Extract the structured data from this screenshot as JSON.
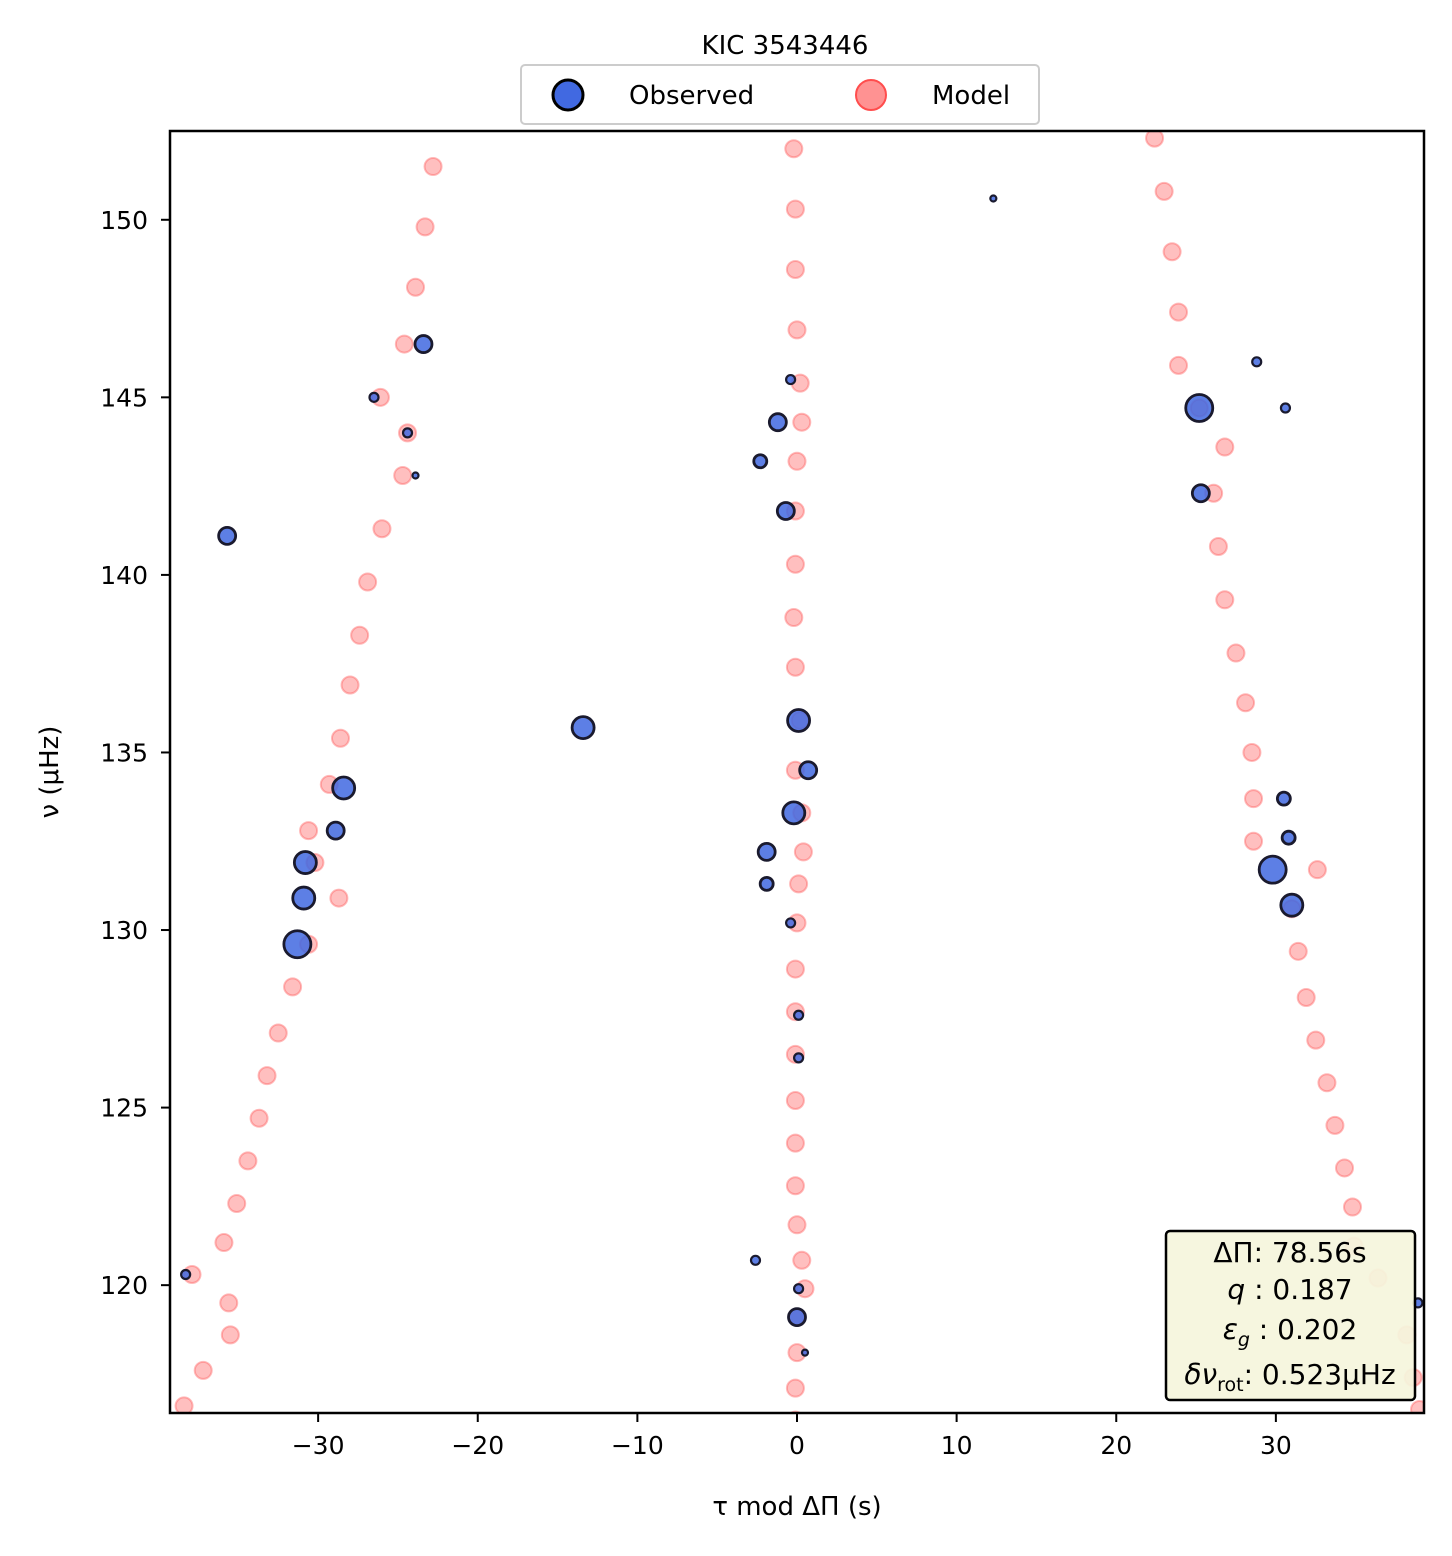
{
  "chart_data": {
    "type": "scatter",
    "title": "KIC 3543446",
    "xlabel": "τ mod ΔΠ (s)",
    "ylabel": "ν (μHz)",
    "xlim": [
      -39.28,
      39.28
    ],
    "ylim": [
      116.4,
      152.5
    ],
    "xticks": [
      -30,
      -20,
      -10,
      0,
      10,
      20,
      30
    ],
    "xtick_labels": [
      "−30",
      "−20",
      "−10",
      "0",
      "10",
      "20",
      "30"
    ],
    "yticks": [
      120,
      125,
      130,
      135,
      140,
      145,
      150
    ],
    "ytick_labels": [
      "120",
      "125",
      "130",
      "135",
      "140",
      "145",
      "150"
    ],
    "grid": false,
    "legend": {
      "placement": "top-center, above plot",
      "entries": [
        "Observed",
        "Model"
      ]
    },
    "series": [
      {
        "name": "Observed",
        "color": "#4169e1",
        "edge_color": "#1a1a2e",
        "marker_size_encodes": "relative amplitude",
        "points": [
          [
            -23.4,
            146.5,
            "m"
          ],
          [
            -26.5,
            145.0,
            "xs"
          ],
          [
            -24.4,
            144.0,
            "xs"
          ],
          [
            -23.9,
            142.8,
            "xxs"
          ],
          [
            -35.7,
            141.1,
            "m"
          ],
          [
            -13.4,
            135.7,
            "l"
          ],
          [
            -28.4,
            134.0,
            "l"
          ],
          [
            -28.9,
            132.8,
            "m"
          ],
          [
            -30.8,
            131.9,
            "l"
          ],
          [
            -30.9,
            130.9,
            "l"
          ],
          [
            -31.3,
            129.6,
            "xl"
          ],
          [
            -38.3,
            120.3,
            "xs"
          ],
          [
            12.3,
            150.6,
            "xxs"
          ],
          [
            -0.4,
            145.5,
            "xs"
          ],
          [
            -1.2,
            144.3,
            "m"
          ],
          [
            -2.3,
            143.2,
            "s"
          ],
          [
            -0.7,
            141.8,
            "m"
          ],
          [
            0.1,
            135.9,
            "l"
          ],
          [
            0.7,
            134.5,
            "m"
          ],
          [
            -0.2,
            133.3,
            "l"
          ],
          [
            -1.9,
            132.2,
            "m"
          ],
          [
            -1.9,
            131.3,
            "s"
          ],
          [
            -0.4,
            130.2,
            "xs"
          ],
          [
            0.1,
            127.6,
            "xs"
          ],
          [
            0.1,
            126.4,
            "xs"
          ],
          [
            -2.6,
            120.7,
            "xs"
          ],
          [
            0.1,
            119.9,
            "xs"
          ],
          [
            0.0,
            119.1,
            "m"
          ],
          [
            0.5,
            118.1,
            "xxs"
          ],
          [
            28.8,
            146.0,
            "xs"
          ],
          [
            25.2,
            144.7,
            "xl"
          ],
          [
            30.6,
            144.7,
            "xs"
          ],
          [
            25.3,
            142.3,
            "m"
          ],
          [
            30.5,
            133.7,
            "s"
          ],
          [
            30.8,
            132.6,
            "s"
          ],
          [
            29.8,
            131.7,
            "xl"
          ],
          [
            31.0,
            130.7,
            "l"
          ],
          [
            38.9,
            119.5,
            "xs"
          ]
        ]
      },
      {
        "name": "Model",
        "color": "#ff7f7f",
        "points": [
          [
            -22.8,
            151.5
          ],
          [
            -23.3,
            149.8
          ],
          [
            -23.9,
            148.1
          ],
          [
            -24.6,
            146.5
          ],
          [
            -26.1,
            145.0
          ],
          [
            -24.4,
            144.0
          ],
          [
            -24.7,
            142.8
          ],
          [
            -26.0,
            141.3
          ],
          [
            -26.9,
            139.8
          ],
          [
            -27.4,
            138.3
          ],
          [
            -28.0,
            136.9
          ],
          [
            -28.6,
            135.4
          ],
          [
            -29.3,
            134.1
          ],
          [
            -30.6,
            132.8
          ],
          [
            -30.2,
            131.9
          ],
          [
            -28.7,
            130.9
          ],
          [
            -30.6,
            129.6
          ],
          [
            -31.6,
            128.4
          ],
          [
            -32.5,
            127.1
          ],
          [
            -33.2,
            125.9
          ],
          [
            -33.7,
            124.7
          ],
          [
            -34.4,
            123.5
          ],
          [
            -35.1,
            122.3
          ],
          [
            -35.9,
            121.2
          ],
          [
            -37.9,
            120.3
          ],
          [
            -35.6,
            119.5
          ],
          [
            -35.5,
            118.6
          ],
          [
            -37.2,
            117.6
          ],
          [
            -38.4,
            116.6
          ],
          [
            -0.2,
            152.0
          ],
          [
            -0.1,
            150.3
          ],
          [
            -0.1,
            148.6
          ],
          [
            0.0,
            146.9
          ],
          [
            0.2,
            145.4
          ],
          [
            0.3,
            144.3
          ],
          [
            0.0,
            143.2
          ],
          [
            -0.1,
            141.8
          ],
          [
            -0.1,
            140.3
          ],
          [
            -0.2,
            138.8
          ],
          [
            -0.1,
            137.4
          ],
          [
            0.2,
            135.9
          ],
          [
            -0.1,
            134.5
          ],
          [
            0.3,
            133.3
          ],
          [
            0.4,
            132.2
          ],
          [
            0.1,
            131.3
          ],
          [
            0.0,
            130.2
          ],
          [
            -0.1,
            128.9
          ],
          [
            -0.1,
            127.7
          ],
          [
            -0.1,
            126.5
          ],
          [
            -0.1,
            125.2
          ],
          [
            -0.1,
            124.0
          ],
          [
            -0.1,
            122.8
          ],
          [
            0.0,
            121.7
          ],
          [
            0.3,
            120.7
          ],
          [
            0.5,
            119.9
          ],
          [
            0.0,
            119.1
          ],
          [
            0.0,
            118.1
          ],
          [
            -0.1,
            117.1
          ],
          [
            -0.1,
            116.2
          ],
          [
            22.4,
            152.3
          ],
          [
            23.0,
            150.8
          ],
          [
            23.5,
            149.1
          ],
          [
            23.9,
            147.4
          ],
          [
            23.9,
            145.9
          ],
          [
            25.2,
            144.7
          ],
          [
            26.8,
            143.6
          ],
          [
            26.1,
            142.3
          ],
          [
            26.4,
            140.8
          ],
          [
            26.8,
            139.3
          ],
          [
            27.5,
            137.8
          ],
          [
            28.1,
            136.4
          ],
          [
            28.5,
            135.0
          ],
          [
            28.6,
            133.7
          ],
          [
            28.6,
            132.5
          ],
          [
            32.6,
            131.7
          ],
          [
            31.0,
            130.6
          ],
          [
            31.4,
            129.4
          ],
          [
            31.9,
            128.1
          ],
          [
            32.5,
            126.9
          ],
          [
            33.2,
            125.7
          ],
          [
            33.7,
            124.5
          ],
          [
            34.3,
            123.3
          ],
          [
            34.8,
            122.2
          ],
          [
            34.9,
            121.1
          ],
          [
            36.4,
            120.2
          ],
          [
            38.2,
            118.6
          ],
          [
            38.6,
            117.4
          ],
          [
            39.0,
            116.5
          ]
        ]
      }
    ],
    "fit_parameters": {
      "delta_pi": "78.56s",
      "q": "0.187",
      "epsilon_g": "0.202",
      "delta_nu_rot": "0.523μHz"
    }
  },
  "info_box": {
    "line1_symbol": "ΔΠ",
    "line1_value": ": 78.56s",
    "line2_symbol": "q",
    "line2_value": " :  0.187",
    "line3_symbol": "ε",
    "line3_sub": "g",
    "line3_value": " : 0.202",
    "line4_symbol": "δν",
    "line4_sub": "rot",
    "line4_value": ": 0.523μHz",
    "background": "#f5f5dc",
    "edge_color": "#000000"
  }
}
